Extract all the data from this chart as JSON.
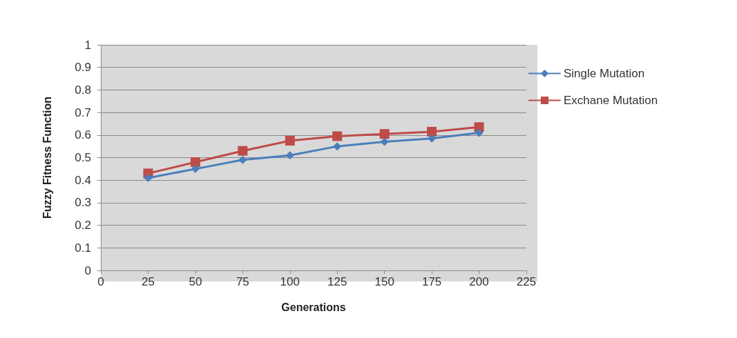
{
  "chart_data": {
    "type": "line",
    "xlabel": "Generations",
    "ylabel": "Fuzzy Fitness Function",
    "x": [
      25,
      50,
      75,
      100,
      125,
      150,
      175,
      200
    ],
    "series": [
      {
        "name": "Single Mutation",
        "color": "#4a7ebb",
        "marker": "diamond",
        "values": [
          0.41,
          0.45,
          0.49,
          0.51,
          0.55,
          0.57,
          0.585,
          0.61
        ]
      },
      {
        "name": "Exchane Mutation",
        "color": "#be4b48",
        "marker": "square",
        "values": [
          0.43,
          0.48,
          0.53,
          0.575,
          0.595,
          0.605,
          0.615,
          0.635
        ]
      }
    ],
    "xlim": [
      0,
      225
    ],
    "xticks": [
      0,
      25,
      50,
      75,
      100,
      125,
      150,
      175,
      200,
      225
    ],
    "ylim": [
      0,
      1
    ],
    "yticks": [
      0,
      0.1,
      0.2,
      0.3,
      0.4,
      0.5,
      0.6,
      0.7,
      0.8,
      0.9,
      1
    ],
    "grid": "y",
    "legend": "right",
    "line_style": "solid"
  }
}
